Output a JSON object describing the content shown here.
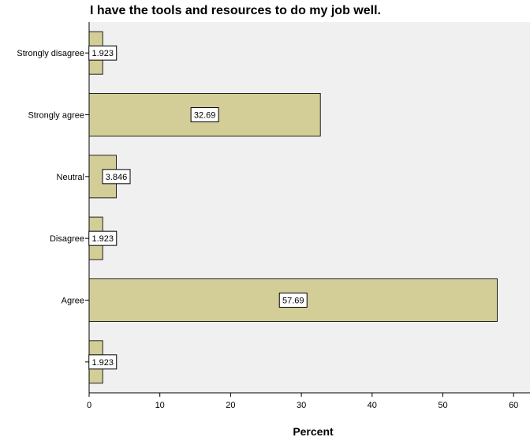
{
  "chart_data": {
    "type": "bar",
    "orientation": "horizontal",
    "title": "I have the tools and resources to do my job well.",
    "xlabel": "Percent",
    "ylabel": "",
    "categories": [
      "Strongly disagree",
      "Strongly agree",
      "Neutral",
      "Disagree",
      "Agree",
      ""
    ],
    "values": [
      1.923,
      32.69,
      3.846,
      1.923,
      57.69,
      1.923
    ],
    "value_labels": [
      "1.923",
      "32.69",
      "3.846",
      "1.923",
      "57.69",
      "1.923"
    ],
    "xlim": [
      0,
      62
    ],
    "x_ticks": [
      0,
      10,
      20,
      30,
      40,
      50,
      60
    ],
    "grid": false,
    "colors": {
      "bar_fill": "#d3ce97",
      "bar_stroke": "#222222",
      "plot_background": "#f0f0f0",
      "label_box": "#ffffff"
    }
  }
}
